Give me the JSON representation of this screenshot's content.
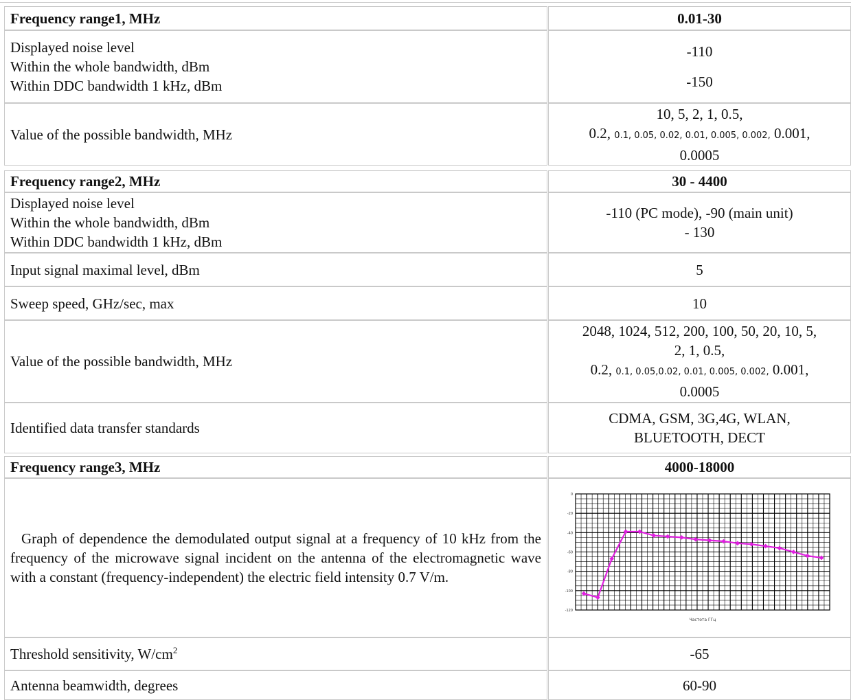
{
  "table": {
    "range1": {
      "label": "Frequency range1, MHz",
      "value": "0.01-30"
    },
    "noise1": {
      "line1": "Displayed noise level",
      "line2": "Within the whole bandwidth, dBm",
      "line3": "Within DDC bandwidth 1 kHz, dBm",
      "value1": "-110",
      "value2": "-150"
    },
    "bw1": {
      "label": "Value of the possible bandwidth, MHz",
      "line1": "10, 5, 2, 1, 0.5,",
      "line2_a": "0.2,",
      "line2_small": "0.1, 0.05, 0.02, 0.01, 0.005, 0.002,",
      "line2_b": "0.001,",
      "line3": "0.0005"
    },
    "range2": {
      "label": "Frequency range2, MHz",
      "value": "30 - 4400"
    },
    "noise2": {
      "line1": "Displayed noise level",
      "line2": "Within the whole bandwidth, dBm",
      "line3": "Within DDC bandwidth 1 kHz, dBm",
      "value1": "-110 (PC mode), -90 (main unit)",
      "value2": "- 130"
    },
    "input_level": {
      "label": "Input signal maximal level, dBm",
      "value": "5"
    },
    "sweep": {
      "label": "Sweep speed, GHz/sec, max",
      "value": "10"
    },
    "bw2": {
      "label": "Value of the possible bandwidth, MHz",
      "line1": "2048, 1024, 512, 200, 100, 50, 20, 10, 5,",
      "line2": "2, 1, 0.5,",
      "line3_a": "0.2,",
      "line3_small": "0.1, 0.05,0.02, 0.01, 0.005, 0.002,",
      "line3_b": "0.001,",
      "line4": "0.0005"
    },
    "standards": {
      "label": "Identified data transfer standards",
      "line1": "CDMA, GSM, 3G,4G, WLAN,",
      "line2": "BLUETOOTH, DECT"
    },
    "range3": {
      "label": "Frequency range3, MHz",
      "value": "4000-18000"
    },
    "graph_row": {
      "description": "Graph of dependence the demodulated output signal at a frequency of 10 kHz from the frequency of the microwave signal incident on the antenna of the electromagnetic wave with a constant (frequency-independent) the electric field intensity 0.7 V/m."
    },
    "threshold": {
      "label": "Threshold sensitivity, W/cm",
      "label_sup": "2",
      "value": "-65"
    },
    "beamwidth": {
      "label": "Antenna beamwidth, degrees",
      "value": "60-90"
    }
  },
  "chart_data": {
    "type": "line",
    "xlabel": "Частота ГГц",
    "ylabel": "",
    "ylim": [
      -120,
      0
    ],
    "yticks": [
      0,
      -20,
      -40,
      -60,
      -80,
      -100,
      -120
    ],
    "ytick_labels": [
      "0",
      "-20",
      "-40",
      "-60",
      "-80",
      "-100",
      "-120"
    ],
    "grid": true,
    "series_color": "#e020e0",
    "background": "#ffffff",
    "x": [
      1,
      2,
      3,
      4,
      5,
      6,
      7,
      8,
      9,
      10,
      11,
      12,
      13,
      14,
      15,
      16,
      17,
      18
    ],
    "values": [
      -103,
      -107,
      -67,
      -39,
      -39,
      -43,
      -44,
      -45,
      -47,
      -48,
      -49,
      -51,
      -52,
      -54,
      -56,
      -60,
      -64,
      -66
    ]
  }
}
